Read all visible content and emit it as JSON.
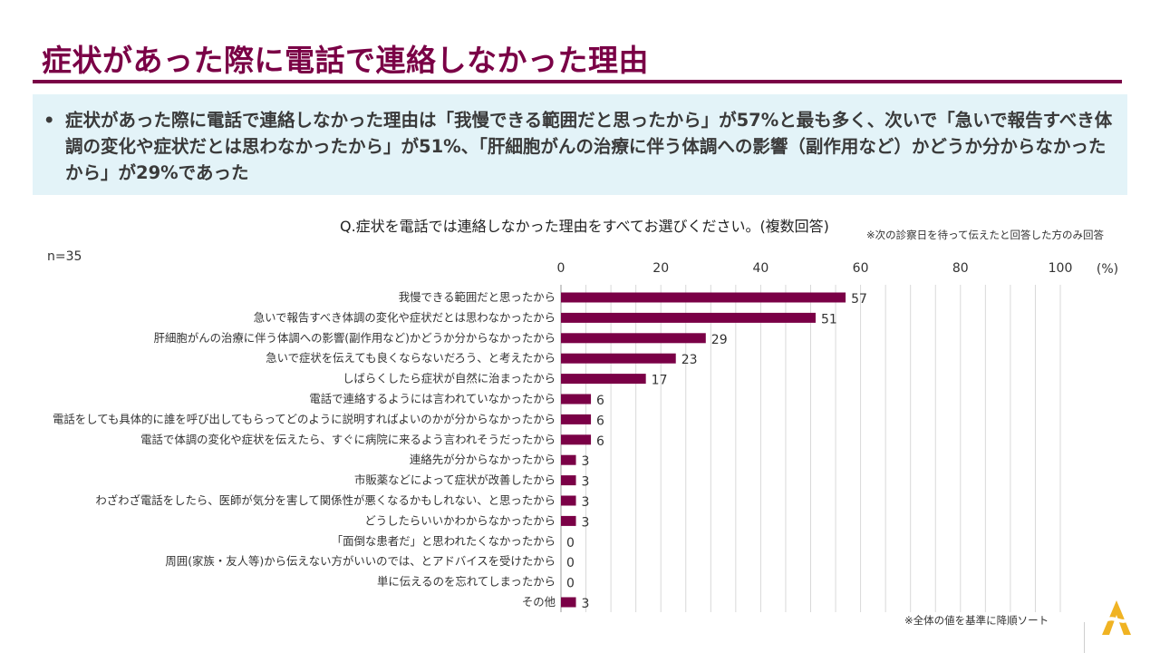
{
  "page": {
    "title": "症状があった際に電話で連絡しなかった理由",
    "summary": "症状があった際に電話で連絡しなかった理由は「我慢できる範囲だと思ったから」が57%と最も多く、次いで「急いで報告すべき体調の変化や症状だとは思わなかったから」が51%、「肝細胞がんの治療に伴う体調への影響（副作用など）かどうか分からなかったから」が29%であった",
    "question": "Q.症状を電話では連絡しなかった理由をすべてお選びください。(複数回答)",
    "note_top": "※次の診察日を待って伝えたと回答した方のみ回答",
    "n_label": "n=35",
    "note_bottom": "※全体の値を基準に降順ソート"
  },
  "colors": {
    "accent": "#7a0046",
    "bar": "#7a0046",
    "summary_bg": "#e3f3f8",
    "grid": "#d9d9d9",
    "logo": "#f0b323"
  },
  "chart_data": {
    "type": "bar",
    "orientation": "horizontal",
    "title": "Q.症状を電話では連絡しなかった理由をすべてお選びください。(複数回答)",
    "xlabel": "(%)",
    "ylabel": "",
    "xlim": [
      0,
      100
    ],
    "xticks": [
      0,
      20,
      40,
      60,
      80,
      100
    ],
    "grid": true,
    "categories": [
      "我慢できる範囲だと思ったから",
      "急いで報告すべき体調の変化や症状だとは思わなかったから",
      "肝細胞がんの治療に伴う体調への影響(副作用など)かどうか分からなかったから",
      "急いで症状を伝えても良くならないだろう、と考えたから",
      "しばらくしたら症状が自然に治まったから",
      "電話で連絡するようには言われていなかったから",
      "電話をしても具体的に誰を呼び出してもらってどのように説明すればよいのかが分からなかったから",
      "電話で体調の変化や症状を伝えたら、すぐに病院に来るよう言われそうだったから",
      "連絡先が分からなかったから",
      "市販薬などによって症状が改善したから",
      "わざわざ電話をしたら、医師が気分を害して関係性が悪くなるかもしれない、と思ったから",
      "どうしたらいいかわからなかったから",
      "「面倒な患者だ」と思われたくなかったから",
      "周囲(家族・友人等)から伝えない方がいいのでは、とアドバイスを受けたから",
      "単に伝えるのを忘れてしまったから",
      "その他"
    ],
    "values": [
      57,
      51,
      29,
      23,
      17,
      6,
      6,
      6,
      3,
      3,
      3,
      3,
      0,
      0,
      0,
      3
    ]
  }
}
